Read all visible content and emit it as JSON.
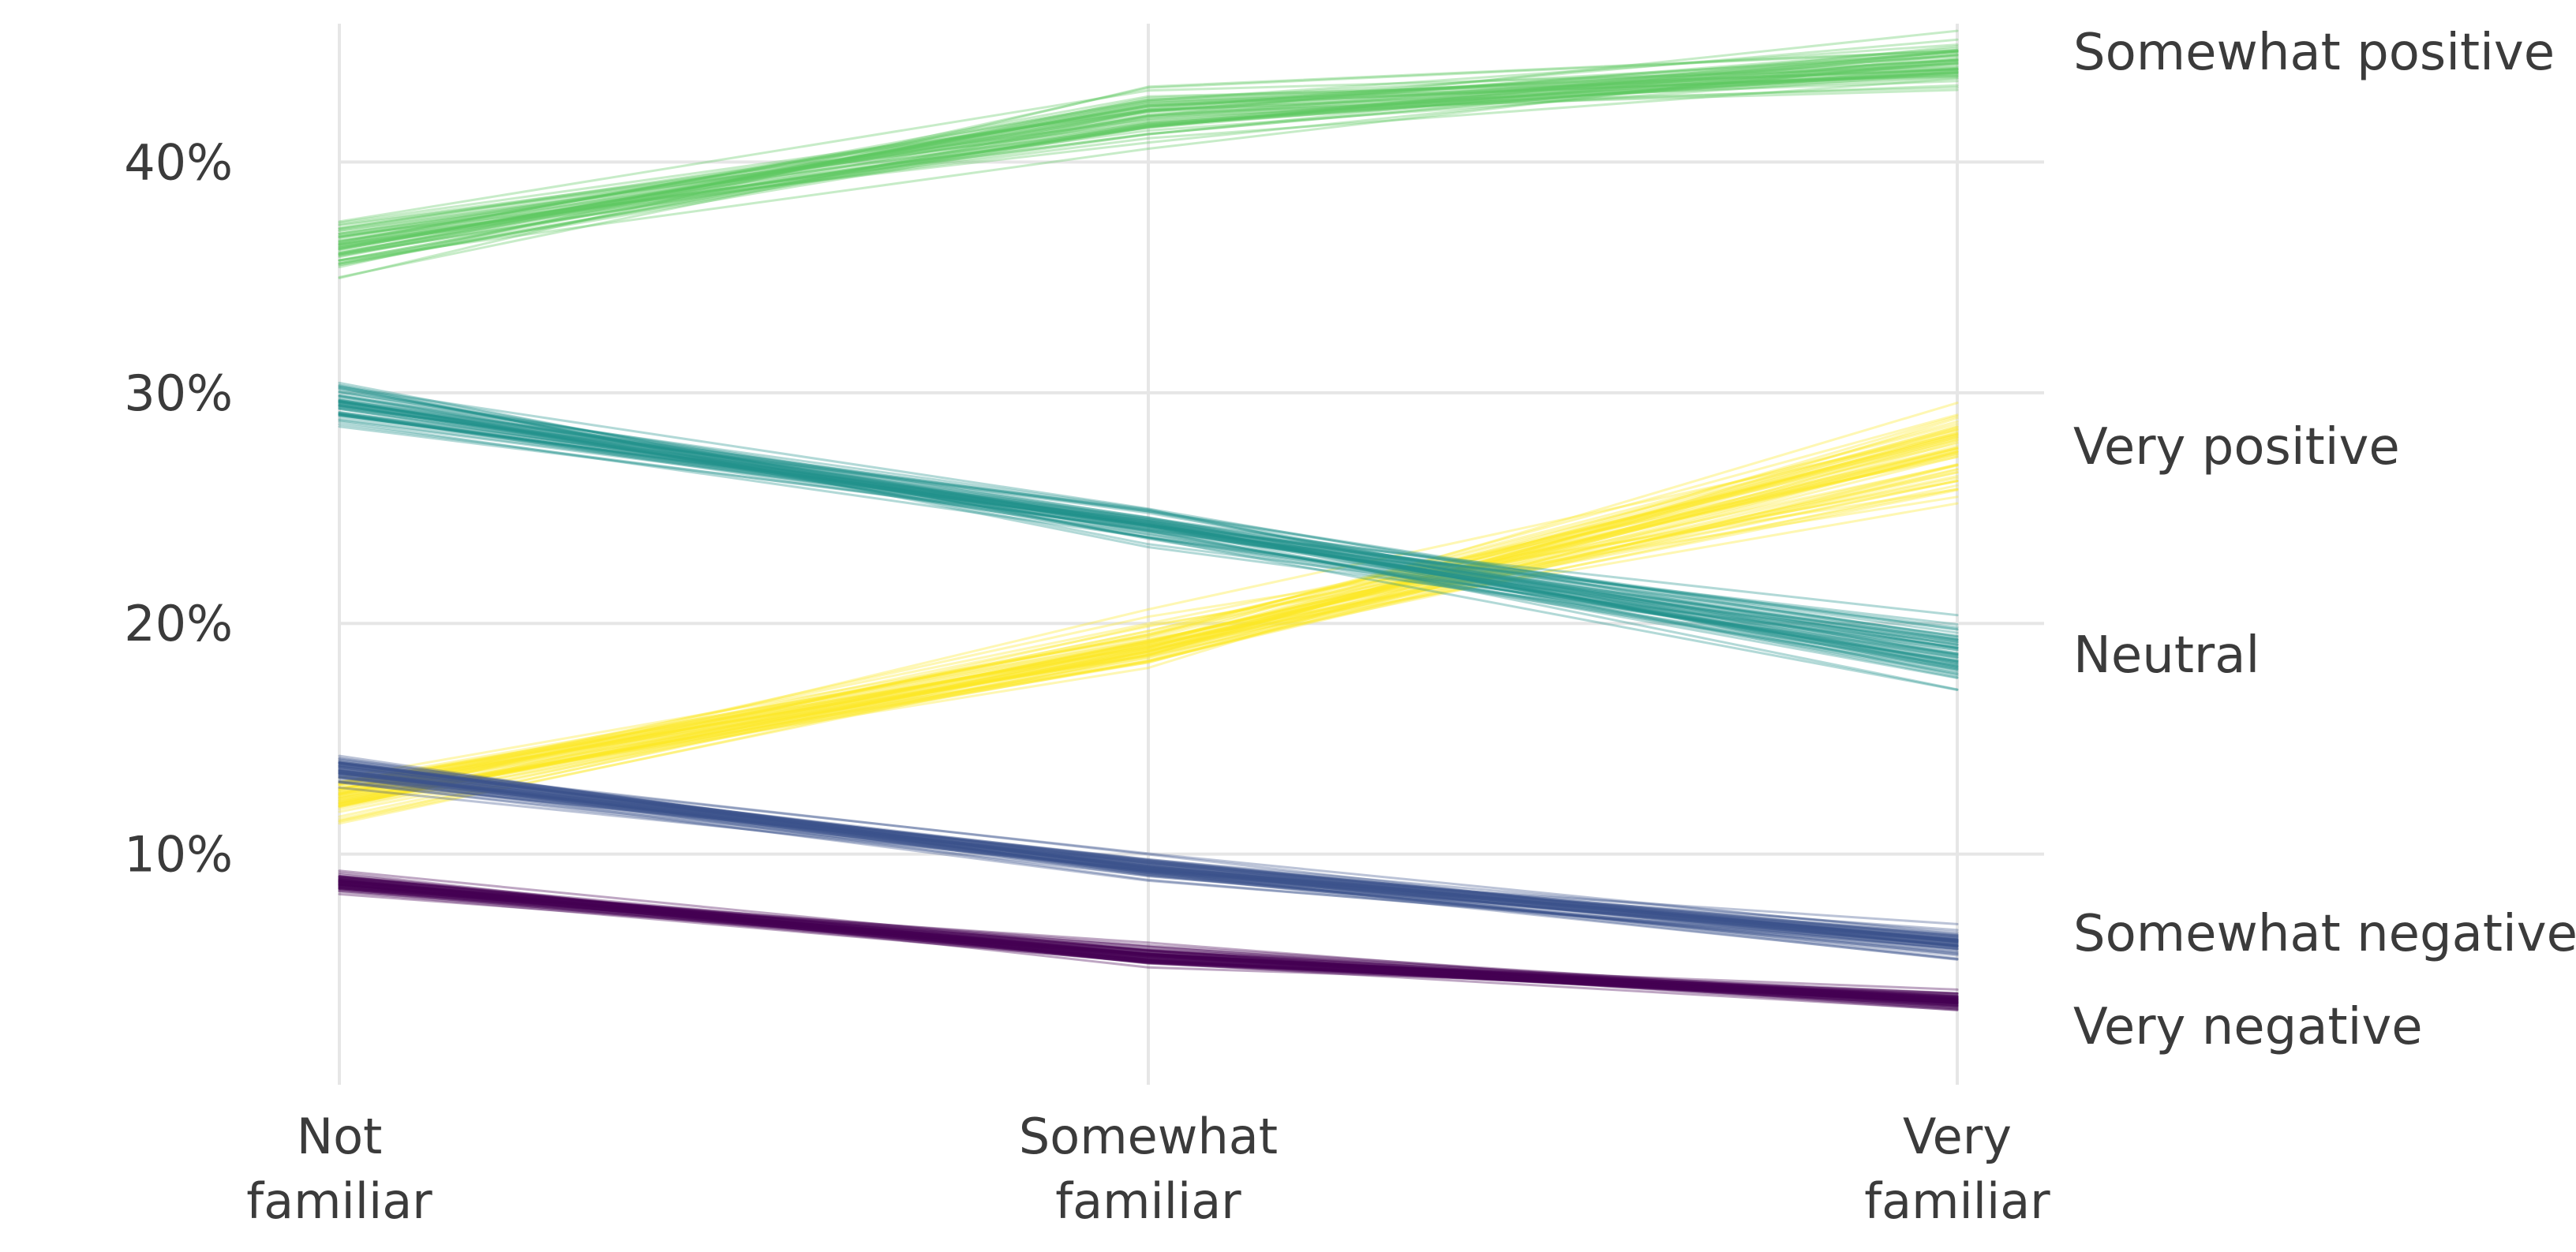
{
  "chart_data": {
    "type": "line",
    "x": [
      "Not familiar",
      "Somewhat familiar",
      "Very familiar"
    ],
    "x_tick_labels": [
      [
        "Not",
        "familiar"
      ],
      [
        "Somewhat",
        "familiar"
      ],
      [
        "Very",
        "familiar"
      ]
    ],
    "y_ticks": [
      10,
      20,
      30,
      40
    ],
    "y_tick_labels": [
      "10%",
      "20%",
      "30%",
      "40%"
    ],
    "ylim": [
      0,
      46
    ],
    "y_unit": "percent",
    "grid": true,
    "legend": "direct labels at right",
    "draws_per_series": 60,
    "series": [
      {
        "name": "Somewhat positive",
        "color": "#5ec962",
        "values": [
          36.3,
          42.0,
          44.3
        ],
        "spread": [
          1.1,
          1.3,
          1.1
        ]
      },
      {
        "name": "Very positive",
        "color": "#fde725",
        "values": [
          12.6,
          19.0,
          27.4
        ],
        "spread": [
          0.9,
          1.0,
          2.1
        ]
      },
      {
        "name": "Neutral",
        "color": "#21918c",
        "values": [
          29.6,
          24.3,
          18.6
        ],
        "spread": [
          1.0,
          0.8,
          1.3
        ]
      },
      {
        "name": "Somewhat negative",
        "color": "#3b528b",
        "values": [
          13.6,
          9.4,
          6.2
        ],
        "spread": [
          0.6,
          0.6,
          0.6
        ]
      },
      {
        "name": "Very negative",
        "color": "#440154",
        "values": [
          8.8,
          5.6,
          3.6
        ],
        "spread": [
          0.5,
          0.4,
          0.4
        ]
      }
    ]
  }
}
